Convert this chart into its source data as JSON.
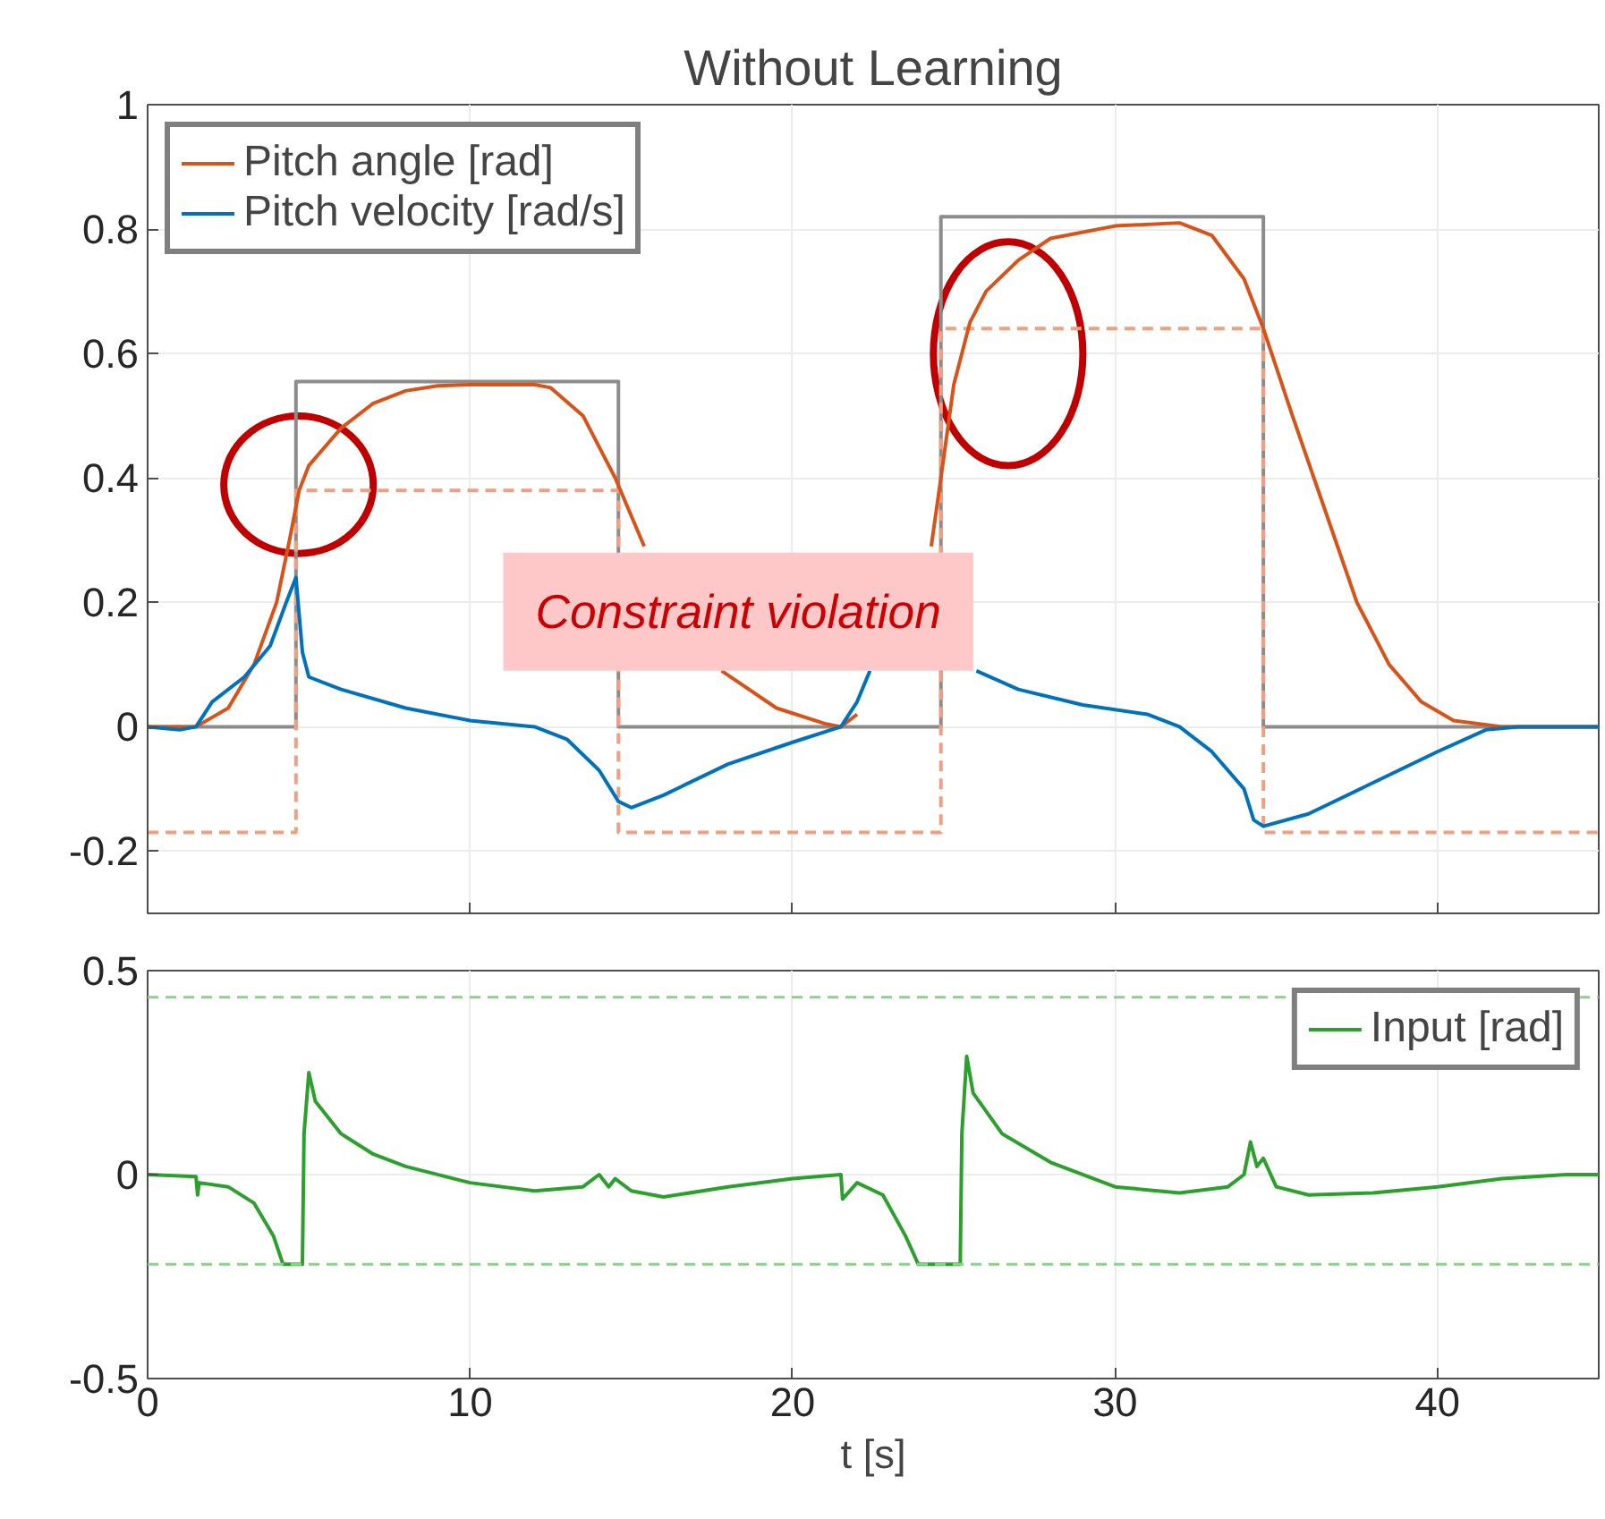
{
  "chart_data": [
    {
      "type": "line",
      "title": "Without Learning",
      "xlim": [
        0,
        45
      ],
      "xticks": [
        0,
        10,
        20,
        30,
        40
      ],
      "ylim": [
        -0.3,
        1
      ],
      "yticks": [
        -0.2,
        0,
        0.2,
        0.4,
        0.6,
        0.8,
        1
      ],
      "grid": true,
      "legend": "top left",
      "tick_labels": "y",
      "annotations": [
        "Constraint violation"
      ],
      "series": [
        {
          "color": "#8c8c8c",
          "line_style": "solid",
          "x": [
            0,
            4.6,
            4.6,
            14.6,
            14.6,
            24.6,
            24.6,
            34.6,
            34.6,
            45
          ],
          "values": [
            0,
            0,
            0.555,
            0.555,
            0,
            0,
            0.82,
            0.82,
            0,
            0
          ]
        },
        {
          "color": "#f0a080",
          "line_style": "dashed",
          "x": [
            0,
            4.6,
            4.6,
            14.6,
            14.6,
            24.6,
            24.6,
            34.6,
            34.6,
            45
          ],
          "values": [
            -0.17,
            -0.17,
            0.38,
            0.38,
            -0.17,
            -0.17,
            0.64,
            0.64,
            -0.17,
            -0.17
          ]
        },
        {
          "name": "Pitch angle [rad]",
          "color": "#d95319",
          "line_style": "solid",
          "x": [
            0,
            1.5,
            2.5,
            3.3,
            4,
            4.4,
            4.7,
            5,
            6,
            7,
            8,
            9,
            10,
            12,
            12.5,
            13.5,
            14.5,
            15.4,
            16.5,
            17.8,
            19.5,
            21,
            21.5,
            22,
            23,
            24.3,
            24.6,
            25,
            25.5,
            26,
            27,
            28,
            30,
            32,
            33,
            34,
            34.6,
            35.5,
            36.5,
            37.5,
            38.5,
            39.5,
            40.5,
            42,
            45
          ],
          "values": [
            0,
            0,
            0.03,
            0.1,
            0.2,
            0.3,
            0.38,
            0.42,
            0.48,
            0.52,
            0.54,
            0.548,
            0.55,
            0.55,
            0.545,
            0.5,
            0.4,
            0.29,
            null,
            0.09,
            0.03,
            0.005,
            0,
            0.02,
            null,
            0.29,
            0.4,
            0.55,
            0.65,
            0.7,
            0.75,
            0.785,
            0.805,
            0.81,
            0.79,
            0.72,
            0.64,
            0.5,
            0.35,
            0.2,
            0.1,
            0.04,
            0.01,
            0,
            0
          ]
        },
        {
          "name": "Pitch velocity [rad/s]",
          "color": "#0072bd",
          "line_style": "solid",
          "x": [
            0,
            1,
            1.5,
            2,
            3,
            3.8,
            4.3,
            4.6,
            4.8,
            5,
            6,
            8,
            10,
            12,
            13,
            14,
            14.6,
            15,
            16,
            18,
            20,
            21.5,
            22,
            22.4,
            24,
            25.7,
            27,
            29,
            31,
            32,
            33,
            34,
            34.3,
            34.6,
            36,
            38,
            40,
            41.5,
            42.5,
            45
          ],
          "values": [
            0,
            -0.005,
            0,
            0.04,
            0.08,
            0.13,
            0.2,
            0.24,
            0.12,
            0.08,
            0.06,
            0.03,
            0.01,
            0,
            -0.02,
            -0.07,
            -0.12,
            -0.13,
            -0.11,
            -0.06,
            -0.025,
            0,
            0.04,
            0.09,
            null,
            0.09,
            0.06,
            0.035,
            0.02,
            0,
            -0.04,
            -0.1,
            -0.15,
            -0.16,
            -0.14,
            -0.09,
            -0.04,
            -0.005,
            0,
            0
          ]
        }
      ]
    },
    {
      "type": "line",
      "xlabel": "t [s]",
      "xlim": [
        0,
        45
      ],
      "xticks": [
        0,
        10,
        20,
        30,
        40
      ],
      "ylim": [
        -0.5,
        0.5
      ],
      "yticks": [
        -0.5,
        0,
        0.5
      ],
      "grid": true,
      "legend": "top right",
      "ref_lines": [
        {
          "axis": "y",
          "value": 0.435,
          "color": "#8fd08f",
          "line_style": "dashed"
        },
        {
          "axis": "y",
          "value": -0.22,
          "color": "#8fd08f",
          "line_style": "dashed"
        }
      ],
      "series": [
        {
          "name": "Input [rad]",
          "color": "#2ca02c",
          "line_style": "solid",
          "x": [
            0,
            1.5,
            1.55,
            1.6,
            2.5,
            3.3,
            3.9,
            4.2,
            4.8,
            4.85,
            5,
            5.2,
            6,
            7,
            8,
            10,
            12,
            13.5,
            14,
            14.3,
            14.5,
            15,
            16,
            18,
            20,
            21.5,
            21.55,
            22,
            22.8,
            23.5,
            23.9,
            25.2,
            25.25,
            25.4,
            25.6,
            26.5,
            28,
            30,
            32,
            33.5,
            34,
            34.2,
            34.4,
            34.6,
            35,
            36,
            38,
            40,
            42,
            44,
            45
          ],
          "values": [
            0,
            -0.005,
            -0.05,
            -0.02,
            -0.03,
            -0.07,
            -0.15,
            -0.22,
            -0.22,
            0.1,
            0.25,
            0.18,
            0.1,
            0.05,
            0.02,
            -0.02,
            -0.04,
            -0.03,
            0,
            -0.03,
            -0.01,
            -0.04,
            -0.055,
            -0.03,
            -0.01,
            0,
            -0.06,
            -0.02,
            -0.05,
            -0.15,
            -0.22,
            -0.22,
            0.1,
            0.29,
            0.2,
            0.1,
            0.03,
            -0.03,
            -0.045,
            -0.03,
            0,
            0.08,
            0.02,
            0.04,
            -0.03,
            -0.05,
            -0.045,
            -0.03,
            -0.01,
            0,
            0
          ]
        }
      ]
    }
  ]
}
